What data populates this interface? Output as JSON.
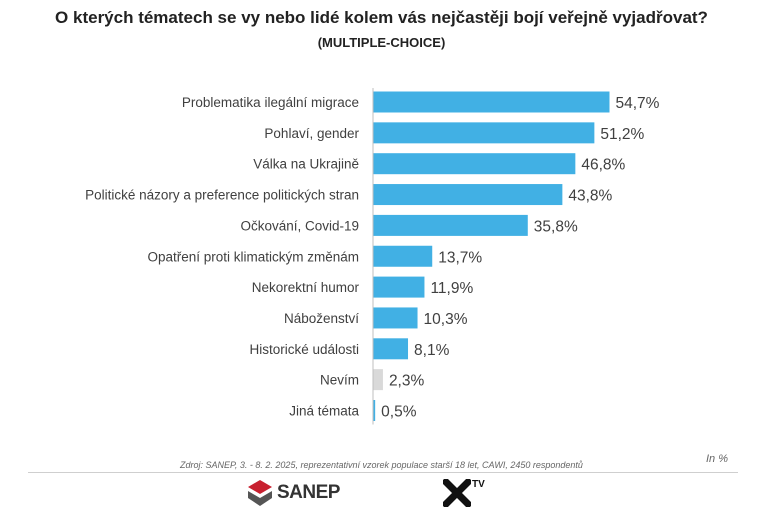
{
  "title": "O kterých tématech se vy nebo lidé kolem vás nejčastěji bojí veřejně vyjadřovat?",
  "subtitle": "(MULTIPLE-CHOICE)",
  "source": "Zdroj: SANEP, 3. - 8. 2. 2025, reprezentativní vzorek populace starší 18 let, CAWI, 2450 respondentů",
  "unit_label": "In %",
  "logos": {
    "sanep": "SANEP",
    "xtv_mark": "X",
    "xtv_text": "TV"
  },
  "colors": {
    "bar": "#41b0e4",
    "bar_muted": "#d9d9d9",
    "axis": "#bfbfbf",
    "logo_red": "#c8202f"
  },
  "chart_data": {
    "type": "bar",
    "orientation": "horizontal",
    "categories": [
      "Problematika ilegální migrace",
      "Pohlaví, gender",
      "Válka na Ukrajině",
      "Politické názory a preference politických stran",
      "Očkování, Covid-19",
      "Opatření proti klimatickým změnám",
      "Nekorektní humor",
      "Náboženství",
      "Historické události",
      "Nevím",
      "Jiná témata"
    ],
    "values": [
      54.7,
      51.2,
      46.8,
      43.8,
      35.8,
      13.7,
      11.9,
      10.3,
      8.1,
      2.3,
      0.5
    ],
    "value_labels": [
      "54,7%",
      "51,2%",
      "46,8%",
      "43,8%",
      "35,8%",
      "13,7%",
      "11,9%",
      "10,3%",
      "8,1%",
      "2,3%",
      "0,5%"
    ],
    "muted_categories": [
      "Nevím"
    ],
    "xlim": [
      0,
      60
    ],
    "grid": false
  }
}
